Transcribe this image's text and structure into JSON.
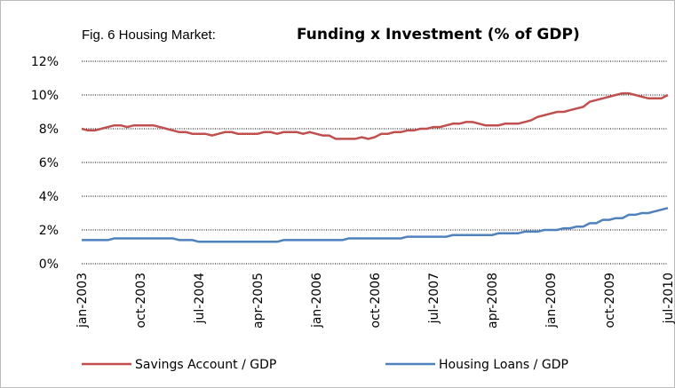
{
  "chart_data": {
    "type": "line",
    "title_parts": [
      "Fig. 6  Housing Market:",
      "Funding x Investment (% of GDP)"
    ],
    "categories": [
      "jan-2003",
      null,
      null,
      null,
      null,
      null,
      null,
      null,
      null,
      "oct-2003",
      null,
      null,
      null,
      null,
      null,
      null,
      null,
      null,
      "jul-2004",
      null,
      null,
      null,
      null,
      null,
      null,
      null,
      null,
      "apr-2005",
      null,
      null,
      null,
      null,
      null,
      null,
      null,
      null,
      "jan-2006",
      null,
      null,
      null,
      null,
      null,
      null,
      null,
      null,
      "oct-2006",
      null,
      null,
      null,
      null,
      null,
      null,
      null,
      null,
      "jul-2007",
      null,
      null,
      null,
      null,
      null,
      null,
      null,
      null,
      "apr-2008",
      null,
      null,
      null,
      null,
      null,
      null,
      null,
      null,
      "jan-2009",
      null,
      null,
      null,
      null,
      null,
      null,
      null,
      null,
      "oct-2009",
      null,
      null,
      null,
      null,
      null,
      null,
      null,
      null,
      "jul-2010"
    ],
    "series": [
      {
        "name": "Savings Account / GDP",
        "color": "#c0504d",
        "values": [
          8.0,
          7.9,
          7.9,
          8.0,
          8.1,
          8.2,
          8.2,
          8.1,
          8.2,
          8.2,
          8.2,
          8.2,
          8.1,
          8.0,
          7.9,
          7.8,
          7.8,
          7.7,
          7.7,
          7.7,
          7.6,
          7.7,
          7.8,
          7.8,
          7.7,
          7.7,
          7.7,
          7.7,
          7.8,
          7.8,
          7.7,
          7.8,
          7.8,
          7.8,
          7.7,
          7.8,
          7.7,
          7.6,
          7.6,
          7.4,
          7.4,
          7.4,
          7.4,
          7.5,
          7.4,
          7.5,
          7.7,
          7.7,
          7.8,
          7.8,
          7.9,
          7.9,
          8.0,
          8.0,
          8.1,
          8.1,
          8.2,
          8.3,
          8.3,
          8.4,
          8.4,
          8.3,
          8.2,
          8.2,
          8.2,
          8.3,
          8.3,
          8.3,
          8.4,
          8.5,
          8.7,
          8.8,
          8.9,
          9.0,
          9.0,
          9.1,
          9.2,
          9.3,
          9.6,
          9.7,
          9.8,
          9.9,
          10.0,
          10.1,
          10.1,
          10.0,
          9.9,
          9.8,
          9.8,
          9.8,
          10.0
        ]
      },
      {
        "name": "Housing Loans / GDP",
        "color": "#4f81bd",
        "values": [
          1.4,
          1.4,
          1.4,
          1.4,
          1.4,
          1.5,
          1.5,
          1.5,
          1.5,
          1.5,
          1.5,
          1.5,
          1.5,
          1.5,
          1.5,
          1.4,
          1.4,
          1.4,
          1.3,
          1.3,
          1.3,
          1.3,
          1.3,
          1.3,
          1.3,
          1.3,
          1.3,
          1.3,
          1.3,
          1.3,
          1.3,
          1.4,
          1.4,
          1.4,
          1.4,
          1.4,
          1.4,
          1.4,
          1.4,
          1.4,
          1.4,
          1.5,
          1.5,
          1.5,
          1.5,
          1.5,
          1.5,
          1.5,
          1.5,
          1.5,
          1.6,
          1.6,
          1.6,
          1.6,
          1.6,
          1.6,
          1.6,
          1.7,
          1.7,
          1.7,
          1.7,
          1.7,
          1.7,
          1.7,
          1.8,
          1.8,
          1.8,
          1.8,
          1.9,
          1.9,
          1.9,
          2.0,
          2.0,
          2.0,
          2.1,
          2.1,
          2.2,
          2.2,
          2.4,
          2.4,
          2.6,
          2.6,
          2.7,
          2.7,
          2.9,
          2.9,
          3.0,
          3.0,
          3.1,
          3.2,
          3.3
        ]
      }
    ],
    "ylim": [
      0,
      12
    ],
    "yticks": [
      {
        "value": 0,
        "label": "0%"
      },
      {
        "value": 2,
        "label": "2%"
      },
      {
        "value": 4,
        "label": "4%"
      },
      {
        "value": 6,
        "label": "6%"
      },
      {
        "value": 8,
        "label": "8%"
      },
      {
        "value": 10,
        "label": "10%"
      },
      {
        "value": 12,
        "label": "12%"
      }
    ],
    "grid": true,
    "legend": "bottom"
  }
}
